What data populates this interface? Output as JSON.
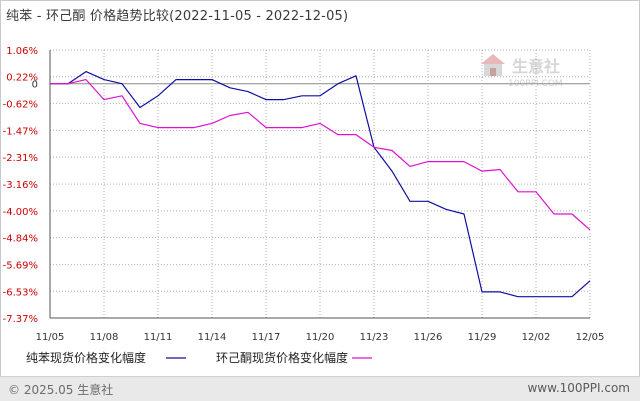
{
  "title": "纯苯 - 环己酮 价格趋势比较(2022-11-05 - 2022-12-05)",
  "footer": {
    "copyright": "© 2025.05 生意社",
    "link": "www.100PPI.com"
  },
  "watermark": {
    "brand": "生意社",
    "url": "100PPI.COM"
  },
  "colors": {
    "series1": "#1010a0",
    "series2": "#e010d0",
    "positive_label": "#cc0000",
    "negative_label": "#cc0000",
    "zero_label": "#333333",
    "grid": "#b0b0b0"
  },
  "chart_data": {
    "type": "line",
    "title": "纯苯 - 环己酮 价格趋势比较(2022-11-05 - 2022-12-05)",
    "x": [
      "11/05",
      "11/06",
      "11/07",
      "11/08",
      "11/09",
      "11/10",
      "11/11",
      "11/12",
      "11/13",
      "11/14",
      "11/15",
      "11/16",
      "11/17",
      "11/18",
      "11/19",
      "11/20",
      "11/21",
      "11/22",
      "11/23",
      "11/24",
      "11/25",
      "11/26",
      "11/27",
      "11/28",
      "11/29",
      "11/30",
      "12/01",
      "12/02",
      "12/03",
      "12/04",
      "12/05"
    ],
    "x_tick_labels": [
      "11/05",
      "11/08",
      "11/11",
      "11/14",
      "11/17",
      "11/20",
      "11/23",
      "11/26",
      "11/29",
      "12/02",
      "12/05"
    ],
    "y_tick_labels": [
      "1.06%",
      "0.22%",
      "0",
      "-0.62%",
      "-1.47%",
      "-2.31%",
      "-3.16%",
      "-4.00%",
      "-4.84%",
      "-5.69%",
      "-6.53%",
      "-7.37%"
    ],
    "y_ticks": [
      1.06,
      0.22,
      0,
      -0.62,
      -1.47,
      -2.31,
      -3.16,
      -4.0,
      -4.84,
      -5.69,
      -6.53,
      -7.37
    ],
    "ylim": [
      -7.37,
      1.06
    ],
    "grid": true,
    "legend_position": "bottom-left",
    "series": [
      {
        "name": "纯苯现货价格变化幅度",
        "color": "#1010a0",
        "values": [
          0.0,
          0.0,
          0.38,
          0.13,
          0.0,
          -0.75,
          -0.38,
          0.13,
          0.13,
          0.13,
          -0.13,
          -0.25,
          -0.5,
          -0.5,
          -0.38,
          -0.38,
          0.0,
          0.25,
          -2.0,
          -2.75,
          -3.7,
          -3.7,
          -3.95,
          -4.1,
          -6.55,
          -6.55,
          -6.7,
          -6.7,
          -6.7,
          -6.7,
          -6.2
        ]
      },
      {
        "name": "环己酮现货价格变化幅度",
        "color": "#e010d0",
        "values": [
          0.0,
          0.0,
          0.13,
          -0.5,
          -0.38,
          -1.25,
          -1.38,
          -1.38,
          -1.38,
          -1.25,
          -1.0,
          -0.9,
          -1.38,
          -1.38,
          -1.38,
          -1.25,
          -1.6,
          -1.6,
          -2.0,
          -2.1,
          -2.6,
          -2.45,
          -2.45,
          -2.45,
          -2.75,
          -2.7,
          -3.4,
          -3.4,
          -4.1,
          -4.1,
          -4.6
        ]
      }
    ]
  }
}
